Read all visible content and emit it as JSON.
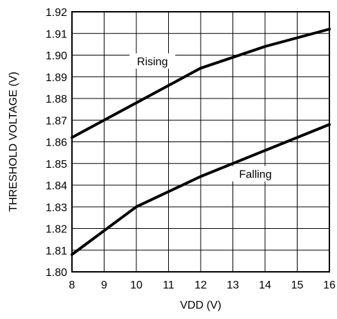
{
  "chart_data": {
    "type": "line",
    "xlabel": "VDD (V)",
    "ylabel": "THRESHOLD VOLTAGE (V)",
    "xlim": [
      8,
      16
    ],
    "ylim": [
      1.8,
      1.92
    ],
    "x_ticks": [
      "8",
      "9",
      "10",
      "11",
      "12",
      "13",
      "14",
      "15",
      "16"
    ],
    "y_ticks": [
      "1.80",
      "1.81",
      "1.82",
      "1.83",
      "1.84",
      "1.85",
      "1.86",
      "1.87",
      "1.88",
      "1.89",
      "1.90",
      "1.91",
      "1.92"
    ],
    "grid": true,
    "series": [
      {
        "name": "Rising",
        "x": [
          8,
          10,
          12,
          14,
          16
        ],
        "y": [
          1.862,
          1.878,
          1.894,
          1.904,
          1.912
        ]
      },
      {
        "name": "Falling",
        "x": [
          8,
          10,
          12,
          14,
          16
        ],
        "y": [
          1.808,
          1.83,
          1.844,
          1.856,
          1.868
        ]
      }
    ],
    "line_color": "#000000"
  }
}
